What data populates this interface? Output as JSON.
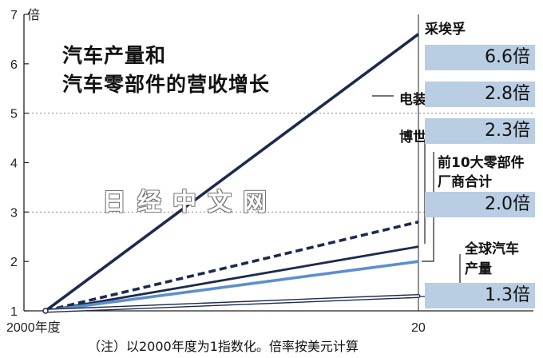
{
  "chart_data": {
    "type": "line",
    "title_line1": "汽车产量和",
    "title_line2": "汽车零部件的营收增长",
    "y_unit": "倍",
    "x_start_label": "2000年度",
    "x_end_label": "20",
    "ylim": [
      1,
      7
    ],
    "yticks": [
      "1",
      "2",
      "3",
      "4",
      "5",
      "6",
      "7"
    ],
    "x": [
      "2000年度",
      "20"
    ],
    "series": [
      {
        "name": "采埃孚",
        "values": [
          1,
          6.6
        ],
        "color": "#1c2a4d",
        "style": "solid",
        "value_label": "6.6倍"
      },
      {
        "name": "电装",
        "values": [
          1,
          2.8
        ],
        "color": "#1c2a4d",
        "style": "dashed",
        "value_label": "2.8倍"
      },
      {
        "name": "博世",
        "values": [
          1,
          2.3
        ],
        "color": "#1c2a4d",
        "style": "solid",
        "value_label": "2.3倍"
      },
      {
        "name": "前10大零部件厂商合计",
        "name_line1": "前10大零部件",
        "name_line2": "厂商合计",
        "values": [
          1,
          2.0
        ],
        "color": "#5b8fce",
        "style": "solid",
        "value_label": "2.0倍"
      },
      {
        "name": "全球汽车产量",
        "name_line1": "全球汽车",
        "name_line2": "产量",
        "values": [
          1,
          1.3
        ],
        "color": "#1c2a4d",
        "style": "hollow",
        "value_label": "1.3倍"
      }
    ],
    "grid": "dotted at 3 and 5",
    "footnote": "（注）以2000年度为1指数化。倍率按美元计算",
    "watermark": "日经中文网"
  }
}
